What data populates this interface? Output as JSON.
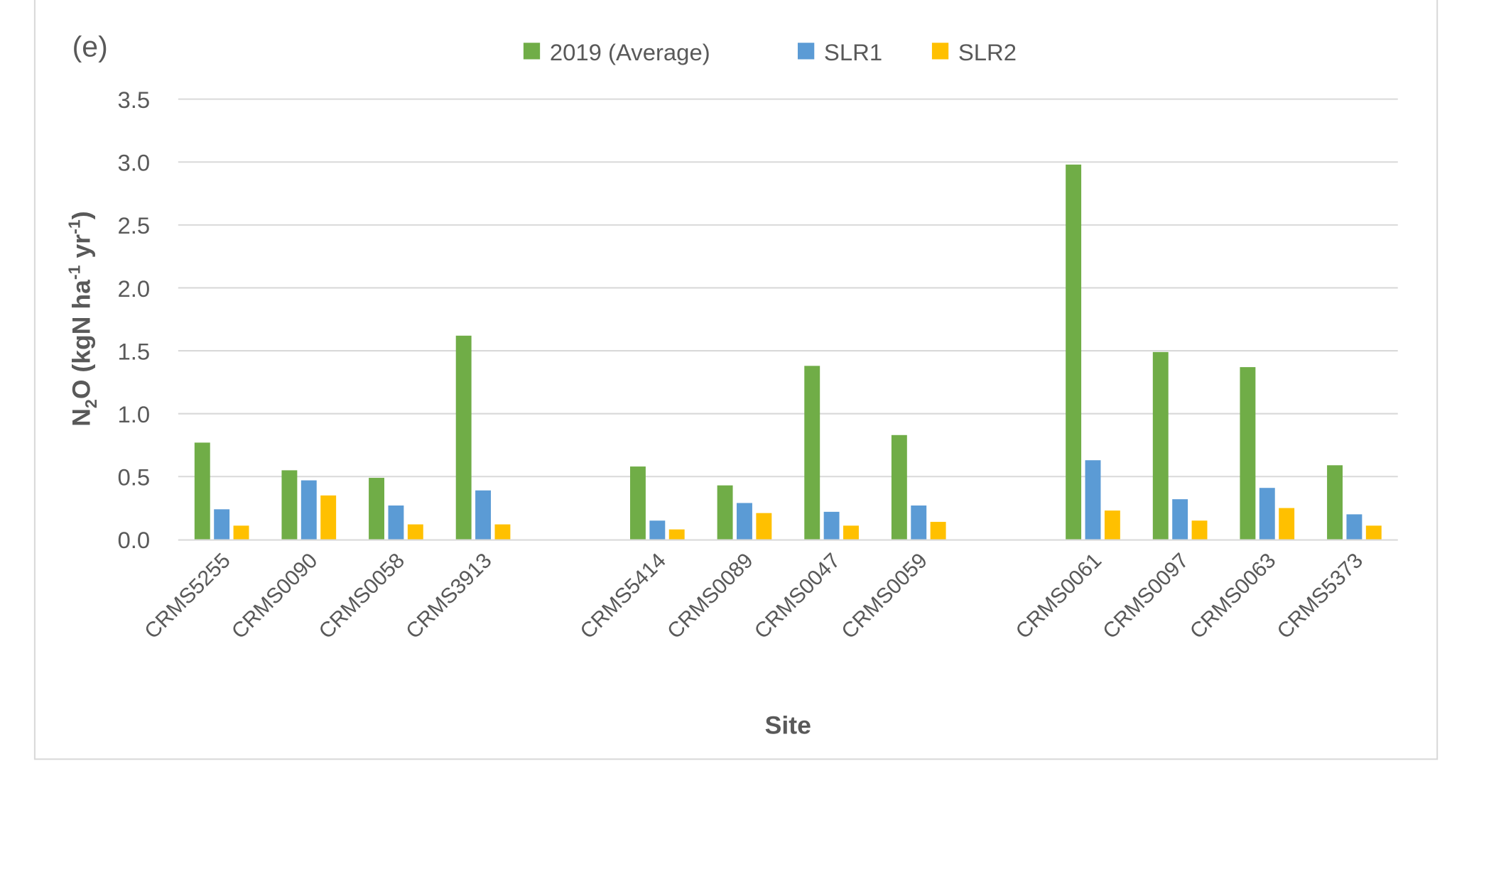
{
  "chart_data": {
    "type": "bar",
    "panel_label": "(e)",
    "xlabel": "Site",
    "ylabel": {
      "main": "N",
      "sub": "2",
      "rest": "O (kgN ha",
      "sup1": "-1",
      "mid": " yr",
      "sup2": "-1",
      "end": ")"
    },
    "ylim": [
      0,
      3.5
    ],
    "yticks": [
      "0.0",
      "0.5",
      "1.0",
      "1.5",
      "2.0",
      "2.5",
      "3.0",
      "3.5"
    ],
    "grid": true,
    "legend_position": "top-center",
    "categories": [
      "CRMS5255",
      "CRMS0090",
      "CRMS0058",
      "CRMS3913",
      "",
      "CRMS5414",
      "CRMS0089",
      "CRMS0047",
      "CRMS0059",
      "",
      "CRMS0061",
      "CRMS0097",
      "CRMS0063",
      "CRMS5373"
    ],
    "series": [
      {
        "name": "2019 (Average)",
        "color": "#70AD47",
        "values": [
          0.77,
          0.55,
          0.49,
          1.62,
          null,
          0.58,
          0.43,
          1.38,
          0.83,
          null,
          2.98,
          1.49,
          1.37,
          0.59
        ]
      },
      {
        "name": "SLR1",
        "color": "#5B9BD5",
        "values": [
          0.24,
          0.47,
          0.27,
          0.39,
          null,
          0.15,
          0.29,
          0.22,
          0.27,
          null,
          0.63,
          0.32,
          0.41,
          0.2
        ]
      },
      {
        "name": "SLR2",
        "color": "#FFC000",
        "values": [
          0.11,
          0.35,
          0.12,
          0.12,
          null,
          0.08,
          0.21,
          0.11,
          0.14,
          null,
          0.23,
          0.15,
          0.25,
          0.11
        ]
      }
    ]
  }
}
